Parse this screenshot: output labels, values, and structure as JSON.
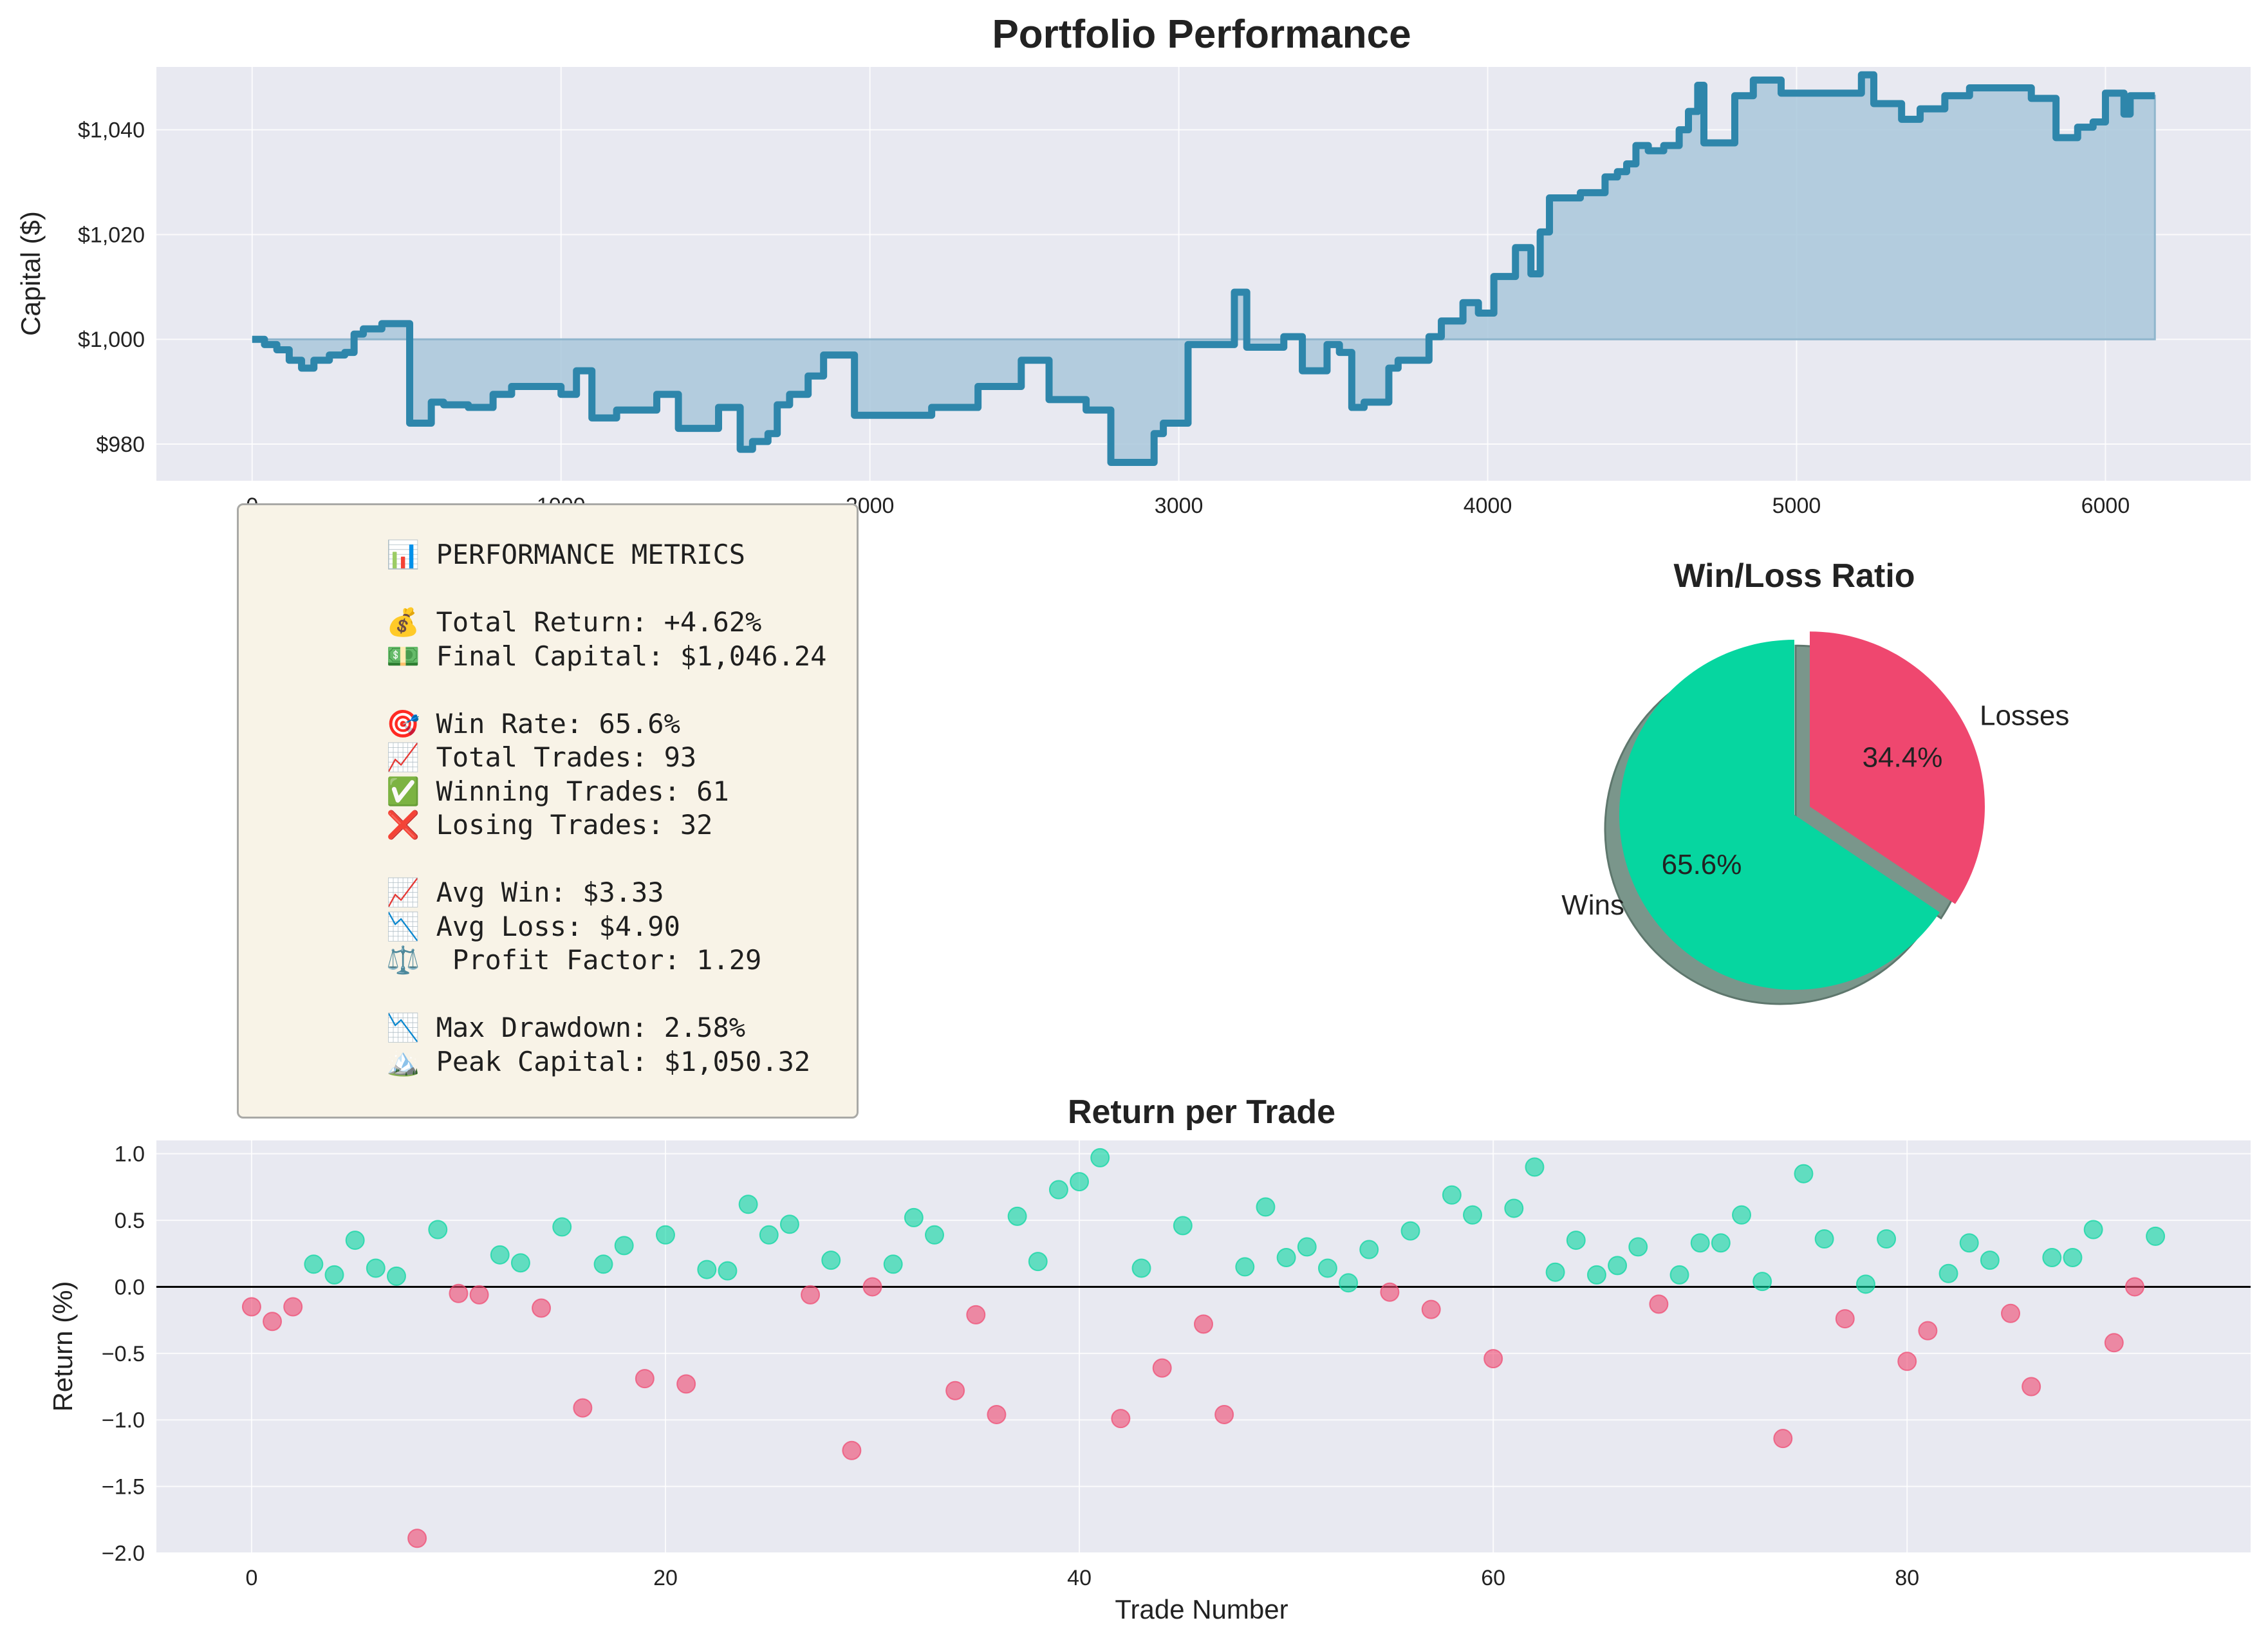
{
  "figure_title": "Portfolio Performance",
  "metrics": {
    "lines": [
      [
        "📊 PERFORMANCE METRICS"
      ],
      [
        "💰 Total Return: +4.62%",
        "💵 Final Capital: $1,046.24"
      ],
      [
        "🎯 Win Rate: 65.6%",
        "📈 Total Trades: 93",
        "✅ Winning Trades: 61",
        "❌ Losing Trades: 32"
      ],
      [
        "📈 Avg Win: $3.33",
        "📉 Avg Loss: $4.90",
        "⚖️  Profit Factor: 1.29"
      ],
      [
        "📉 Max Drawdown: 2.58%",
        "🏔️ Peak Capital: $1,050.32"
      ]
    ]
  },
  "colors": {
    "axes_bg": "#e8e9f1",
    "grid": "#ffffff",
    "equity_line": "#2e86ab",
    "equity_fill": "#a9c7da",
    "wins": "#06d6a0",
    "losses": "#ef476f",
    "shadow": "#7a968b"
  },
  "chart_data": [
    {
      "type": "line",
      "title": "Portfolio Performance",
      "xlabel": "",
      "ylabel": "Capital ($)",
      "xlim": [
        -310,
        6470
      ],
      "ylim": [
        973,
        1052
      ],
      "xticks": [
        0,
        1000,
        2000,
        3000,
        4000,
        5000,
        6000
      ],
      "xtick_labels": [
        "0",
        "1000",
        "2000",
        "3000",
        "4000",
        "5000",
        "6000"
      ],
      "yticks": [
        980,
        1000,
        1020,
        1040
      ],
      "ytick_labels": [
        "$980",
        "$1,000",
        "$1,020",
        "$1,040"
      ],
      "baseline": 1000,
      "grid": true,
      "step": true,
      "x": [
        0,
        40,
        80,
        120,
        160,
        200,
        250,
        300,
        330,
        360,
        420,
        510,
        580,
        620,
        700,
        740,
        780,
        840,
        920,
        1000,
        1050,
        1100,
        1180,
        1310,
        1380,
        1510,
        1580,
        1620,
        1670,
        1700,
        1740,
        1800,
        1850,
        1950,
        2100,
        2200,
        2260,
        2350,
        2490,
        2580,
        2700,
        2740,
        2780,
        2920,
        2950,
        3030,
        3180,
        3220,
        3340,
        3400,
        3480,
        3520,
        3560,
        3600,
        3680,
        3710,
        3810,
        3850,
        3920,
        3970,
        4020,
        4090,
        4140,
        4170,
        4200,
        4300,
        4380,
        4420,
        4450,
        4480,
        4520,
        4570,
        4620,
        4650,
        4680,
        4700,
        4800,
        4860,
        4950,
        5070,
        5150,
        5210,
        5250,
        5340,
        5400,
        5480,
        5560,
        5620,
        5760,
        5800,
        5840,
        5910,
        5960,
        6000,
        6060,
        6080,
        6150,
        6160
      ],
      "y": [
        1000,
        999,
        998,
        996,
        994.5,
        996,
        997,
        997.5,
        1001,
        1002,
        1003,
        984,
        988,
        987.5,
        987,
        987,
        989.5,
        991,
        991,
        989.5,
        994,
        985,
        986.5,
        989.5,
        983,
        987,
        979,
        980.5,
        982,
        987.5,
        989.5,
        993,
        997,
        985.5,
        985.5,
        987,
        987,
        991,
        996,
        988.5,
        986.5,
        986.5,
        976.5,
        982,
        984,
        999,
        1009,
        998.5,
        1000.5,
        994,
        999,
        997.5,
        987,
        988,
        994.5,
        996,
        1000.5,
        1003.5,
        1007,
        1005,
        1012,
        1017.5,
        1012.5,
        1020.5,
        1027,
        1028,
        1031,
        1032,
        1033.5,
        1037,
        1036,
        1037,
        1040,
        1043.5,
        1048.5,
        1037.5,
        1046.5,
        1049.5,
        1047,
        1047,
        1047,
        1050.5,
        1045,
        1042,
        1044,
        1046.5,
        1048,
        1048,
        1046,
        1046,
        1038.5,
        1040.5,
        1041.5,
        1047,
        1043,
        1046.5,
        1046.5,
        1046.5
      ]
    },
    {
      "type": "pie",
      "title": "Win/Loss Ratio",
      "labels": [
        "Wins",
        "Losses"
      ],
      "values": [
        65.6,
        34.4
      ],
      "pct_labels": [
        "65.6%",
        "34.4%"
      ],
      "explode": [
        0,
        0.1
      ],
      "shadow": true
    },
    {
      "type": "scatter",
      "title": "Return per Trade",
      "xlabel": "Trade Number",
      "ylabel": "Return (%)",
      "xlim": [
        -4.6,
        96.6
      ],
      "ylim": [
        -2.0,
        1.1
      ],
      "xticks": [
        0,
        20,
        40,
        60,
        80
      ],
      "xtick_labels": [
        "0",
        "20",
        "40",
        "60",
        "80"
      ],
      "yticks": [
        -2.0,
        -1.5,
        -1.0,
        -0.5,
        0.0,
        0.5,
        1.0
      ],
      "ytick_labels": [
        "−2.0",
        "−1.5",
        "−1.0",
        "−0.5",
        "0.0",
        "0.5",
        "1.0"
      ],
      "hline": 0,
      "grid": true,
      "values": [
        -0.15,
        -0.26,
        -0.15,
        0.17,
        0.09,
        0.35,
        0.14,
        0.08,
        -1.89,
        0.43,
        -0.05,
        -0.06,
        0.24,
        0.18,
        -0.16,
        0.45,
        -0.91,
        0.17,
        0.31,
        -0.69,
        0.39,
        -0.73,
        0.13,
        0.12,
        0.62,
        0.39,
        0.47,
        -0.06,
        0.2,
        -1.23,
        0.0,
        0.17,
        0.52,
        0.39,
        -0.78,
        -0.21,
        -0.96,
        0.53,
        0.19,
        0.73,
        0.79,
        0.97,
        -0.99,
        0.14,
        -0.61,
        0.46,
        -0.28,
        -0.96,
        0.15,
        0.6,
        0.22,
        0.3,
        0.14,
        0.03,
        0.28,
        -0.04,
        0.42,
        -0.17,
        0.69,
        0.54,
        -0.54,
        0.59,
        0.9,
        0.11,
        0.35,
        0.09,
        0.16,
        0.3,
        -0.13,
        0.09,
        0.33,
        0.33,
        0.54,
        0.04,
        -1.14,
        0.85,
        0.36,
        -0.24,
        0.02,
        0.36,
        -0.56,
        -0.33,
        0.1,
        0.33,
        0.2,
        -0.2,
        -0.75,
        0.22,
        0.22,
        0.43,
        -0.42,
        0.0,
        0.38
      ]
    }
  ]
}
